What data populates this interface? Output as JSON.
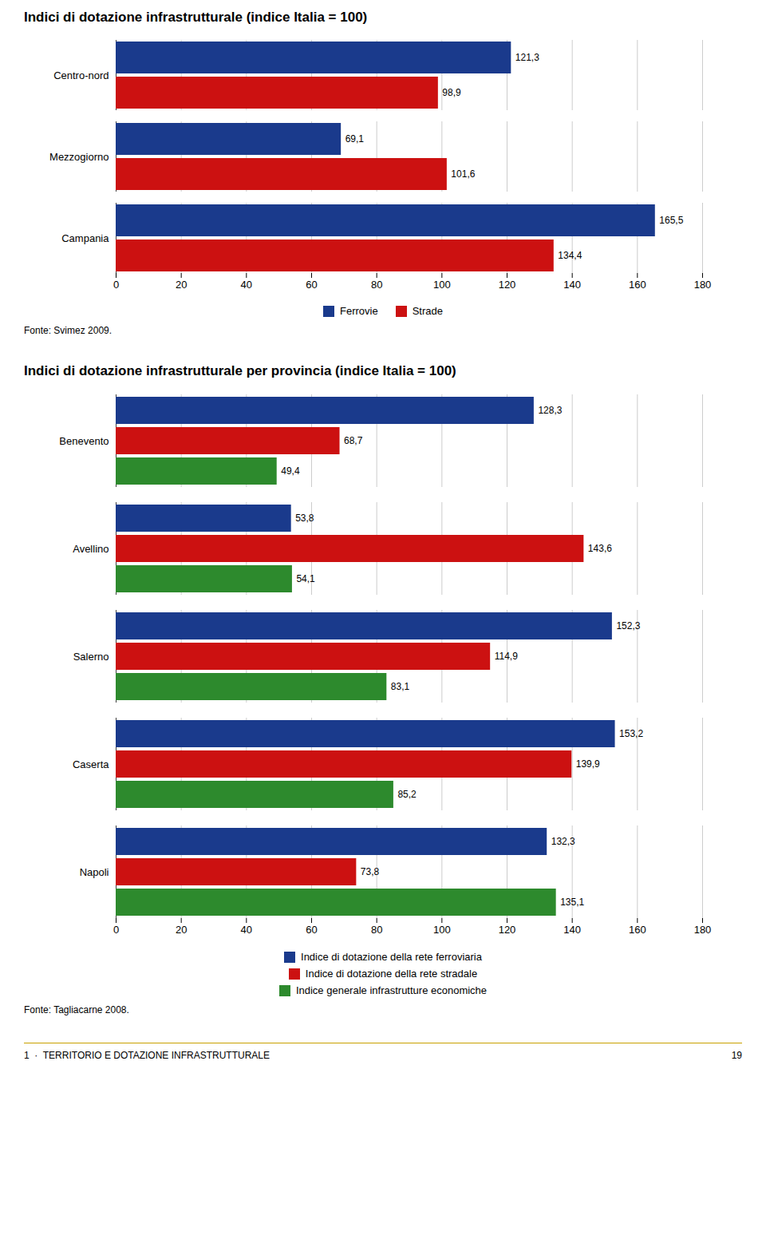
{
  "chart_data": [
    {
      "type": "bar",
      "orientation": "horizontal",
      "title": "Indici di dotazione infrastrutturale (indice Italia = 100)",
      "categories": [
        "Centro-nord",
        "Mezzogiorno",
        "Campania"
      ],
      "series": [
        {
          "name": "Ferrovie",
          "color": "#1a3a8c",
          "values": [
            121.3,
            69.1,
            165.5
          ],
          "value_labels": [
            "121,3",
            "69,1",
            "165,5"
          ]
        },
        {
          "name": "Strade",
          "color": "#cc1111",
          "values": [
            98.9,
            101.6,
            134.4
          ],
          "value_labels": [
            "98,9",
            "101,6",
            "134,4"
          ]
        }
      ],
      "xlim": [
        0,
        180
      ],
      "xticks": [
        0,
        20,
        40,
        60,
        80,
        100,
        120,
        140,
        160,
        180
      ],
      "grid": true,
      "legend": "bottom",
      "data_labels": true,
      "source": "Fonte: Svimez 2009."
    },
    {
      "type": "bar",
      "orientation": "horizontal",
      "title": "Indici di dotazione infrastrutturale per provincia (indice Italia = 100)",
      "categories": [
        "Benevento",
        "Avellino",
        "Salerno",
        "Caserta",
        "Napoli"
      ],
      "series": [
        {
          "name": "Indice di dotazione della rete ferroviaria",
          "color": "#1a3a8c",
          "values": [
            128.3,
            53.8,
            152.3,
            153.2,
            132.3
          ],
          "value_labels": [
            "128,3",
            "53,8",
            "152,3",
            "153,2",
            "132,3"
          ]
        },
        {
          "name": "Indice di dotazione della rete stradale",
          "color": "#cc1111",
          "values": [
            68.7,
            143.6,
            114.9,
            139.9,
            73.8
          ],
          "value_labels": [
            "68,7",
            "143,6",
            "114,9",
            "139,9",
            "73,8"
          ]
        },
        {
          "name": "Indice generale infrastrutture economiche",
          "color": "#2d8a2d",
          "values": [
            49.4,
            54.1,
            83.1,
            85.2,
            135.1
          ],
          "value_labels": [
            "49,4",
            "54,1",
            "83,1",
            "85,2",
            "135,1"
          ]
        }
      ],
      "xlim": [
        0,
        180
      ],
      "xticks": [
        0,
        20,
        40,
        60,
        80,
        100,
        120,
        140,
        160,
        180
      ],
      "grid": true,
      "legend": "bottom",
      "data_labels": true,
      "source": "Fonte: Tagliacarne 2008."
    }
  ],
  "footer_left": "1  ·  TERRITORIO E DOTAZIONE INFRASTRUTTURALE",
  "footer_right": "19"
}
